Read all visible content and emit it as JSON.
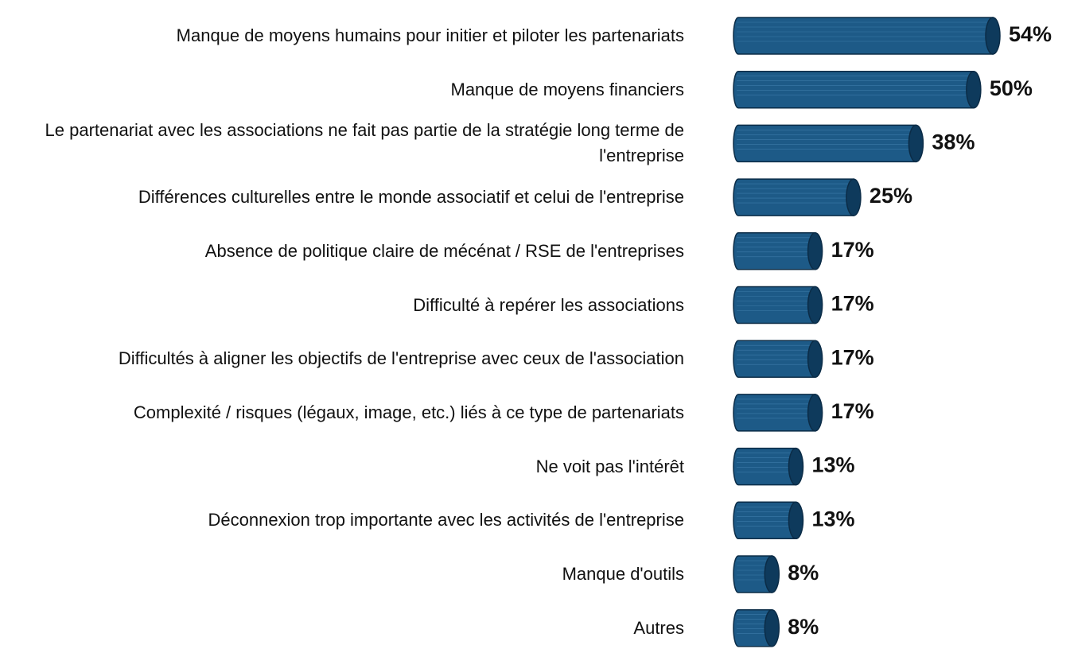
{
  "chart_data": {
    "type": "bar",
    "orientation": "horizontal",
    "color": "#1d5a87",
    "categories": [
      "Manque de moyens humains pour initier et piloter les partenariats",
      "Manque de moyens financiers",
      "Le partenariat avec les associations ne fait pas partie de la stratégie long terme de l'entreprise",
      "Différences culturelles entre le monde associatif et celui de l'entreprise",
      "Absence de politique claire de mécénat / RSE de l'entreprises",
      "Difficulté à repérer les associations",
      "Difficultés à aligner les objectifs de l'entreprise avec ceux de l'association",
      "Complexité / risques (légaux, image, etc.) liés à ce type de partenariats",
      "Ne voit pas l'intérêt",
      "Déconnexion trop importante avec les activités de l'entreprise",
      "Manque d'outils",
      "Autres"
    ],
    "values": [
      54,
      50,
      38,
      25,
      17,
      17,
      17,
      17,
      13,
      13,
      8,
      8
    ],
    "value_labels": [
      "54%",
      "50%",
      "38%",
      "25%",
      "17%",
      "17%",
      "17%",
      "17%",
      "13%",
      "13%",
      "8%",
      "8%"
    ]
  }
}
